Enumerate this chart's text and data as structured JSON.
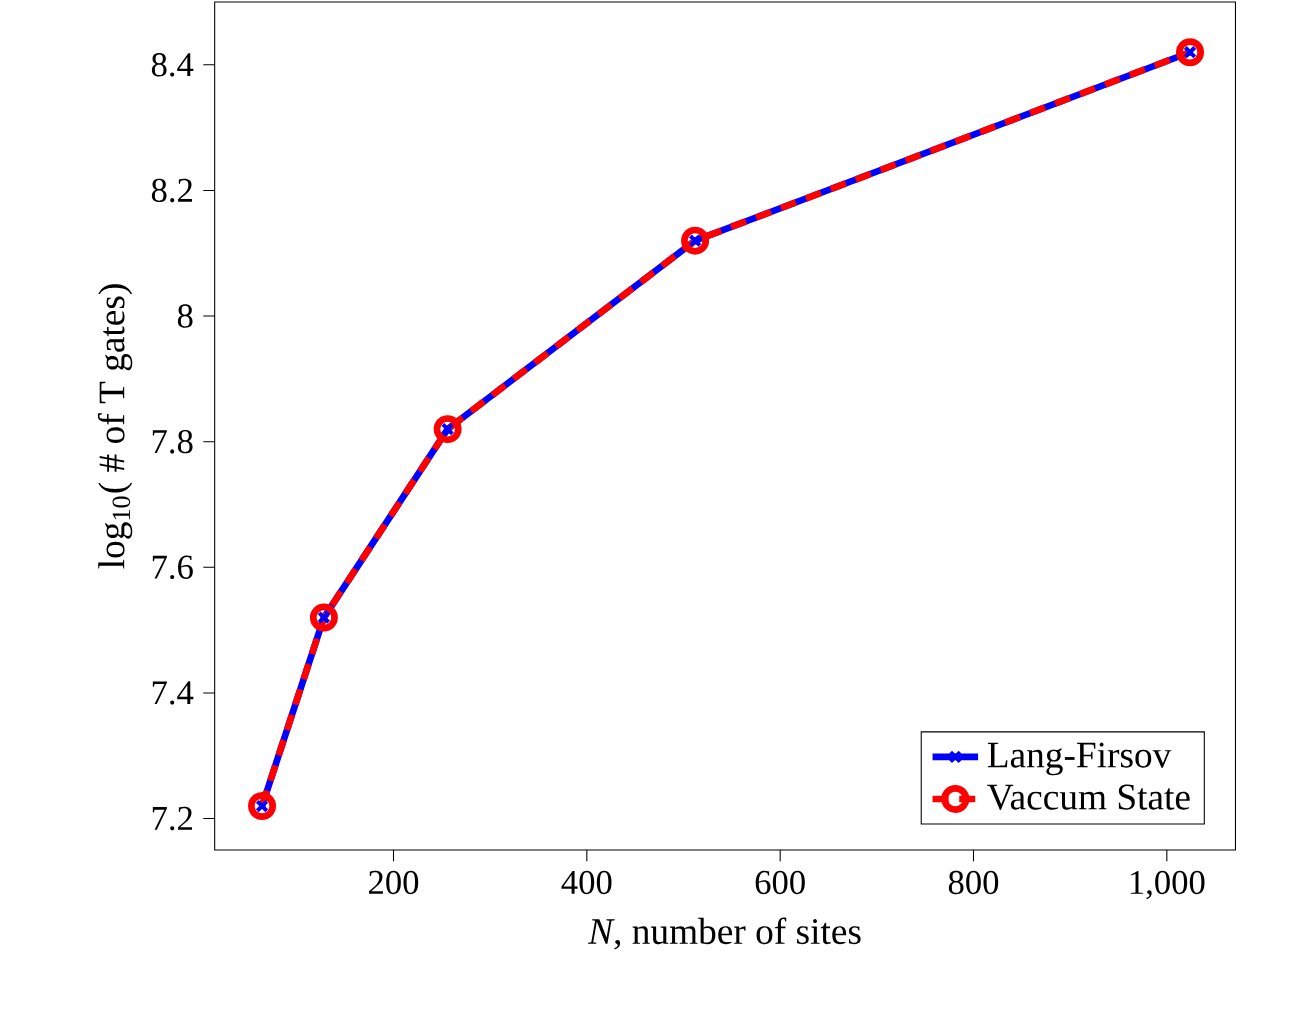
{
  "chart_data": {
    "type": "line",
    "xlabel": "*N*, number of sites",
    "ylabel": "log$_{10}$( # of T gates)",
    "x": [
      64,
      128,
      256,
      512,
      1024
    ],
    "series": [
      {
        "name": "Lang-Firsov",
        "color": "#0000ff",
        "values": [
          7.22,
          7.52,
          7.82,
          8.12,
          8.42
        ],
        "marker": "cross",
        "line_style": "solid"
      },
      {
        "name": "Vaccum State",
        "color": "#ff0000",
        "values": [
          7.22,
          7.52,
          7.82,
          8.12,
          8.42
        ],
        "marker": "circle",
        "line_style": "dashed"
      }
    ],
    "xlim": [
      15,
      1071
    ],
    "ylim": [
      7.15,
      8.5
    ],
    "xticks": [
      200,
      400,
      600,
      800,
      {
        "value": 1000,
        "label": "1,000"
      }
    ],
    "yticks": [
      7.2,
      7.4,
      7.6,
      7.8,
      8,
      8.2,
      8.4
    ],
    "grid": false,
    "legend": "bottom right"
  }
}
